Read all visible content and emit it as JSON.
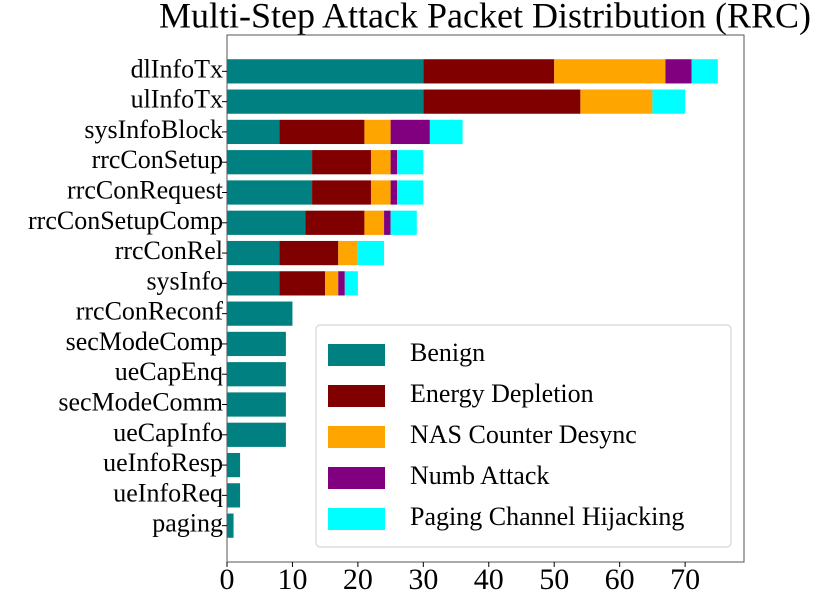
{
  "chart_data": {
    "type": "barh_stacked",
    "title": "Multi-Step Attack Packet Distribution (RRC)",
    "categories": [
      "dlInfoTx",
      "ulInfoTx",
      "sysInfoBlock",
      "rrcConSetup",
      "rrcConRequest",
      "rrcConSetupComp",
      "rrcConRel",
      "sysInfo",
      "rrcConReconf",
      "secModeComp",
      "ueCapEnq",
      "secModeComm",
      "ueCapInfo",
      "ueInfoResp",
      "ueInfoReq",
      "paging"
    ],
    "series": [
      {
        "name": "Benign",
        "color": "#008080",
        "values": [
          30,
          30,
          8,
          13,
          13,
          12,
          8,
          8,
          10,
          9,
          9,
          9,
          9,
          2,
          2,
          1
        ]
      },
      {
        "name": "Energy Depletion",
        "color": "#800000",
        "values": [
          20,
          24,
          13,
          9,
          9,
          9,
          9,
          7,
          0,
          0,
          0,
          0,
          0,
          0,
          0,
          0
        ]
      },
      {
        "name": "NAS Counter Desync",
        "color": "#FFA500",
        "values": [
          17,
          11,
          4,
          3,
          3,
          3,
          3,
          2,
          0,
          0,
          0,
          0,
          0,
          0,
          0,
          0
        ]
      },
      {
        "name": "Numb Attack",
        "color": "#800080",
        "values": [
          4,
          0,
          6,
          1,
          1,
          1,
          0,
          1,
          0,
          0,
          0,
          0,
          0,
          0,
          0,
          0
        ]
      },
      {
        "name": "Paging Channel Hijacking",
        "color": "#00FFFF",
        "values": [
          4,
          5,
          5,
          4,
          4,
          4,
          4,
          2,
          0,
          0,
          0,
          0,
          0,
          0,
          0,
          0
        ]
      }
    ],
    "xlim": [
      0,
      79
    ],
    "xticks": [
      0,
      10,
      20,
      30,
      40,
      50,
      60,
      70
    ],
    "legend": "lower right"
  }
}
